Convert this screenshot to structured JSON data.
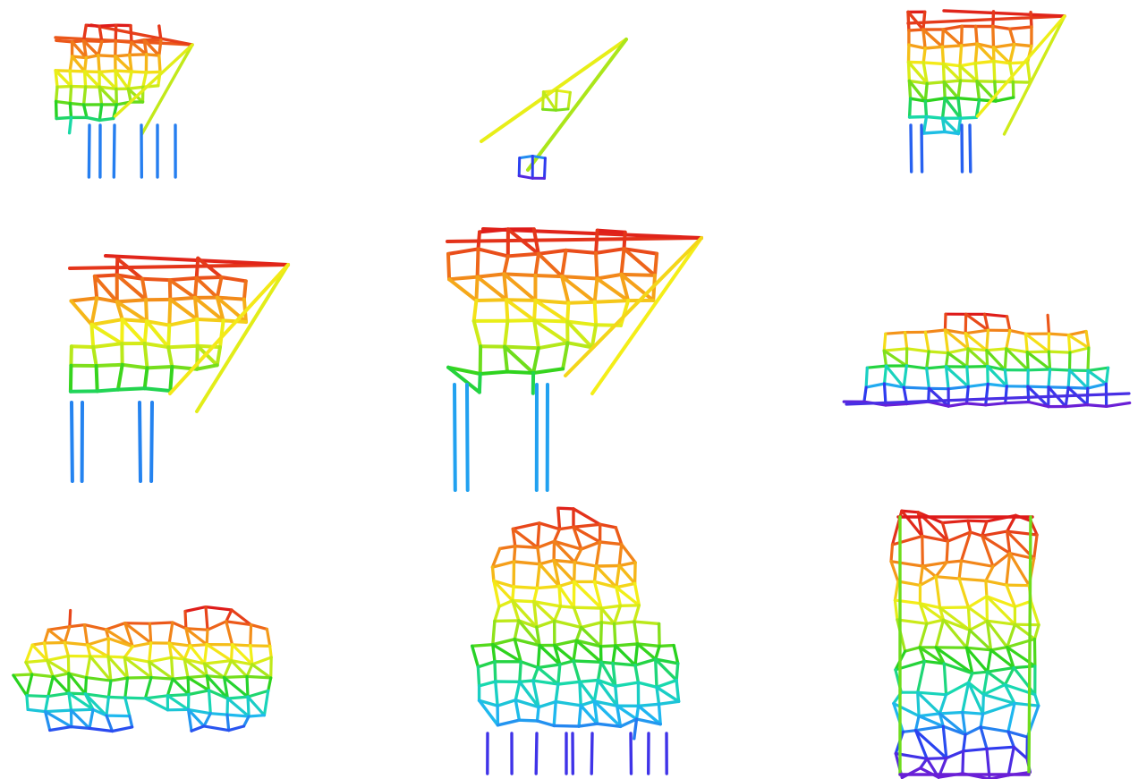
{
  "figure": {
    "description_visible_text": "",
    "color_scale": {
      "low_to_high": [
        "#6a1fd6",
        "#2b3cf0",
        "#1fb8f0",
        "#18d9b0",
        "#28d21e",
        "#b6e81a",
        "#f4ef18",
        "#f5a01a",
        "#ec5a1a",
        "#de1a1a"
      ]
    },
    "panels": [
      {
        "name": "panel-1",
        "shape": "wedge-truss-small"
      },
      {
        "name": "panel-2",
        "shape": "two-long-struts"
      },
      {
        "name": "panel-3",
        "shape": "wedge-truss-side"
      },
      {
        "name": "panel-4",
        "shape": "wedge-truss-large"
      },
      {
        "name": "panel-5",
        "shape": "wedge-truss-large"
      },
      {
        "name": "panel-6",
        "shape": "flat-bridge-truss"
      },
      {
        "name": "panel-7",
        "shape": "double-dome-lattice"
      },
      {
        "name": "panel-8",
        "shape": "triple-lobe-lattice"
      },
      {
        "name": "panel-9",
        "shape": "rectangular-voronoi-lattice"
      }
    ]
  }
}
